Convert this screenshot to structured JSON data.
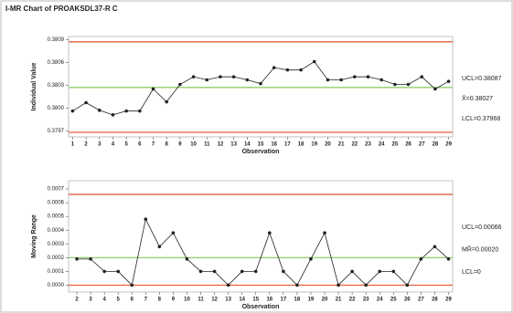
{
  "title": "I-MR Chart of PROAKSDL37-R C",
  "chart_data": [
    {
      "type": "line",
      "x_label": "Observation",
      "y_label": "Individual Value",
      "x": [
        1,
        2,
        3,
        4,
        5,
        6,
        7,
        8,
        9,
        10,
        11,
        12,
        13,
        14,
        15,
        16,
        17,
        18,
        19,
        20,
        21,
        22,
        23,
        24,
        25,
        26,
        27,
        28,
        29
      ],
      "series": [
        {
          "color": "#222222",
          "values": [
            0.37996,
            0.38007,
            0.37997,
            0.37991,
            0.37996,
            0.37996,
            0.38025,
            0.38008,
            0.38031,
            0.38041,
            0.38037,
            0.38041,
            0.38041,
            0.38037,
            0.38032,
            0.38053,
            0.3805,
            0.3805,
            0.38061,
            0.38037,
            0.38037,
            0.38041,
            0.38041,
            0.38037,
            0.38031,
            0.38031,
            0.38041,
            0.38025,
            0.38035
          ]
        }
      ],
      "xlim": [
        0.7,
        29.3
      ],
      "xticks": [
        1,
        2,
        3,
        4,
        5,
        6,
        7,
        8,
        9,
        10,
        11,
        12,
        13,
        14,
        15,
        16,
        17,
        18,
        19,
        20,
        21,
        22,
        23,
        24,
        25,
        26,
        27,
        28,
        29
      ],
      "ylim": [
        0.37962,
        0.38094
      ],
      "yticks": [
        0.3797,
        {
          "value": 0.38,
          "label": "0.3800"
        },
        0.3803,
        0.3806,
        0.3809
      ],
      "limits": [
        {
          "label": "UCL=0.38087",
          "value": 0.38087,
          "color": "#e2603f"
        },
        {
          "label": "X̄=0.38027",
          "value": 0.38027,
          "color": "#8fd06c"
        },
        {
          "label": "LCL=0.37968",
          "value": 0.37968,
          "color": "#e2603f"
        }
      ]
    },
    {
      "type": "line",
      "x_label": "Observation",
      "y_label": "Moving Range",
      "x": [
        2,
        3,
        4,
        5,
        6,
        7,
        8,
        9,
        10,
        11,
        12,
        13,
        14,
        15,
        16,
        17,
        18,
        19,
        20,
        21,
        22,
        23,
        24,
        25,
        26,
        27,
        28,
        29
      ],
      "series": [
        {
          "color": "#222222",
          "values": [
            0.00019,
            0.00019,
            0.0001,
            0.0001,
            0,
            0.00048,
            0.00028,
            0.00038,
            0.00019,
            0.0001,
            0.0001,
            0,
            0.0001,
            0.0001,
            0.00038,
            0.0001,
            0,
            0.00019,
            0.00038,
            0,
            0.0001,
            0,
            0.0001,
            0.0001,
            0,
            0.00019,
            0.00028,
            0.00019
          ]
        }
      ],
      "xlim": [
        1.4,
        29.3
      ],
      "xticks": [
        2,
        3,
        4,
        5,
        6,
        7,
        8,
        9,
        10,
        11,
        12,
        13,
        14,
        15,
        16,
        17,
        18,
        19,
        20,
        21,
        22,
        23,
        24,
        25,
        26,
        27,
        28,
        29
      ],
      "ylim": [
        -5e-05,
        0.00076
      ],
      "yticks": [
        {
          "value": 0,
          "label": "0.0000"
        },
        0.0001,
        0.0002,
        0.0003,
        0.0004,
        0.0005,
        0.0006,
        0.0007
      ],
      "limits": [
        {
          "label": "UCL=0.00066",
          "value": 0.00066,
          "color": "#e2603f"
        },
        {
          "label": "MR̄=0.00020",
          "value": 0.0002,
          "color": "#8fd06c"
        },
        {
          "label": "LCL=0",
          "value": 0,
          "color": "#e2603f"
        }
      ]
    }
  ]
}
